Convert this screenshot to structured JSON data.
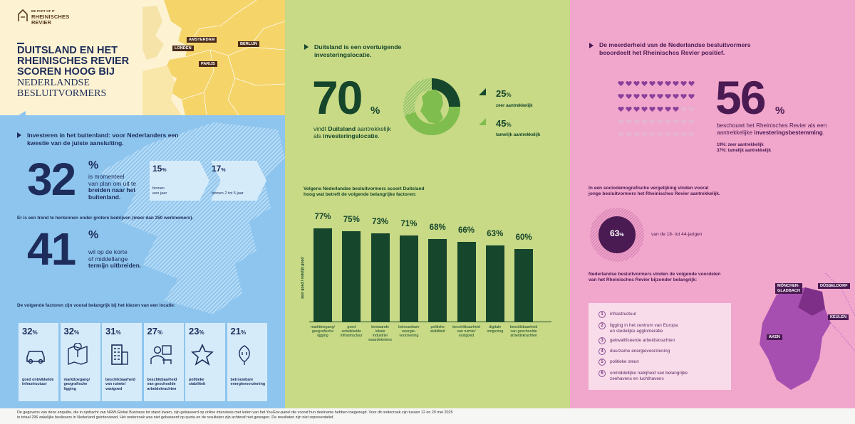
{
  "brand": {
    "tagline": "BE PART OF IT",
    "name_line1": "RHEINISCHES",
    "name_line2": "REVIER"
  },
  "headline": {
    "line1": "DUITSLAND EN HET",
    "line2": "RHEINISCHES REVIER",
    "line3": "SCOREN HOOG BIJ",
    "line4": "NEDERLANDSE",
    "line5": "BESLUITVORMERS"
  },
  "map_cities": [
    "AMSTERDAM",
    "LONDEN",
    "BERLIJN",
    "PARIJS"
  ],
  "blue": {
    "heading_line1": "Investeren in het buitenland: voor Nederlanders een",
    "heading_line2": "kwestie van de juiste aansluiting.",
    "big1": "32",
    "big1_unit": "%",
    "big1_l1": "is momenteel",
    "big1_l2": "van plan om uit te",
    "big1_l3": "breiden naar het",
    "big1_l4": "buitenland.",
    "arrow1_pct": "15",
    "arrow1_unit": "%",
    "arrow1_l1": "binnen",
    "arrow1_l2": "een jaar",
    "arrow2_pct": "17",
    "arrow2_unit": "%",
    "arrow2_l1": "binnen 2 tot 5 jaar",
    "trend": "Er is een trend te herkennen onder grotere bedrijven (meer dan 250 werknemers).",
    "big2": "41",
    "big2_unit": "%",
    "big2_l1": "wil op de korte",
    "big2_l2": "of middellange",
    "big2_l3": "termijn uitbreiden.",
    "factors_heading": "De volgende factoren zijn vooral belangrijk bij het kiezen van een locatie:",
    "factors": [
      {
        "pct": "32",
        "unit": "%",
        "icon": "car-icon",
        "l1": "goed ontwikkelde",
        "l2": "infrastructuur",
        "l3": ""
      },
      {
        "pct": "32",
        "unit": "%",
        "icon": "map-pin-icon",
        "l1": "markttoegang/",
        "l2": "geografische",
        "l3": "ligging"
      },
      {
        "pct": "31",
        "unit": "%",
        "icon": "building-icon",
        "l1": "beschikbaarheid",
        "l2": "van ruimte/",
        "l3": "vastgoed"
      },
      {
        "pct": "27",
        "unit": "%",
        "icon": "workers-icon",
        "l1": "beschikbaarheid",
        "l2": "van geschoolde",
        "l3": "arbeidskrachten"
      },
      {
        "pct": "23",
        "unit": "%",
        "icon": "star-icon",
        "l1": "politieke",
        "l2": "stabiliteit",
        "l3": ""
      },
      {
        "pct": "21",
        "unit": "%",
        "icon": "plug-leaf-icon",
        "l1": "betrouwbare",
        "l2": "energievoorziening",
        "l3": ""
      }
    ]
  },
  "green": {
    "heading_line1": "Duitsland is een overtuigende",
    "heading_line2": "investeringslocatie.",
    "big": "70",
    "big_unit": "%",
    "big_l1_a": "vindt ",
    "big_l1_b": "Duitsland",
    "big_l1_c": " aantrekkelijk",
    "big_l2_a": "als ",
    "big_l2_b": "investeringslocatie",
    "big_l2_c": ".",
    "share1_pct": "25",
    "share1_unit": "%",
    "share1_lbl": "zeer aantrekkelijk",
    "share2_pct": "45",
    "share2_unit": "%",
    "share2_lbl": "tamelijk aantrekkelijk",
    "chart_heading_l1": "Volgens Nederlandse besluitvormers scoort Duitsland",
    "chart_heading_l2": "hoog wat betreft de volgende belangrijke factoren:",
    "y_label": "zeer goed / redelijk goed"
  },
  "chart_data": {
    "type": "bar",
    "ylabel": "zeer goed / redelijk goed",
    "unit": "%",
    "categories": [
      [
        "markttoegang/",
        "geografische",
        "ligging"
      ],
      [
        "goed",
        "ontwikkelde",
        "infrastructuur"
      ],
      [
        "bestaande lokale",
        "industrie/",
        "waardeketens"
      ],
      [
        "betrouwbare",
        "energie-",
        "voorziening"
      ],
      [
        "politieke",
        "stabiliteit",
        ""
      ],
      [
        "beschikbaarheid",
        "van ruimte/",
        "vastgoed"
      ],
      [
        "digitale",
        "omgeving",
        ""
      ],
      [
        "beschikbaarheid",
        "van geschoolde",
        "arbeidskrachten"
      ]
    ],
    "values": [
      77,
      75,
      73,
      71,
      68,
      66,
      63,
      60
    ],
    "ylim": [
      0,
      100
    ],
    "grid": false
  },
  "pink": {
    "heading_line1": "De meerderheid van de Nederlandse besluitvormers",
    "heading_line2": "beoordeelt het Rheinisches Revier positief.",
    "big": "56",
    "big_unit": "%",
    "big_l1": "beschouwt het Rheinisches Revier als een",
    "big_l2_a": "aantrekkelijke ",
    "big_l2_b": "investeringsbestemming",
    "big_l2_c": ".",
    "sub1": "19%: zeer aantrekkelijk",
    "sub2": "37%: tamelijk aantrekkelijk",
    "hearts_total": 50,
    "hearts_filled_fraction": 0.56,
    "demo_l1": "In een sociodemografische vergelijking vinden vooral",
    "demo_l2": "jonge besluitvormers het Rheinisches Revier aantrekkelijk.",
    "circle_pct": "63",
    "circle_unit": "%",
    "circle_lbl": "van de 18- tot 44-jarigen",
    "adv_heading_l1": "Nederlandse besluitvormers vinden de volgende voordelen",
    "adv_heading_l2": "van het Rheinisches Revier bijzonder belangrijk:",
    "advantages": [
      {
        "n": "1",
        "l1": "infrastructuur",
        "l2": ""
      },
      {
        "n": "2",
        "l1": "ligging in het centrum van Europa",
        "l2": "en stedelijke agglomeratie"
      },
      {
        "n": "3",
        "l1": "gekwalificeerde arbeidskrachten",
        "l2": ""
      },
      {
        "n": "4",
        "l1": "duurzame energievoorziening",
        "l2": ""
      },
      {
        "n": "5",
        "l1": "politieke steun",
        "l2": ""
      },
      {
        "n": "6",
        "l1": "onmiddellijke nabijheid van belangrijke",
        "l2": "zeehavens en luchthavens"
      }
    ],
    "map_cities": [
      "MÖNCHEN-",
      "GLADBACH",
      "DÜSSELDORF",
      "KEULEN",
      "AKEN"
    ]
  },
  "footer": {
    "line1": "De gegevens van deze enquête, die in opdracht van NRW.Global Business tot stand kwam, zijn gebaseerd op online interviews met leden van het YouGov-panel die vooraf hun deelname hebben toegezegd. Voor dit onderzoek zijn tussen 12 en 20 mei 2025",
    "line2": "in totaal 296 zakelijke beslissers in Nederland geïnterviewd. Het onderzoek was niet gebaseerd op quota en de resultaten zijn achteraf niet gewogen. De resultaten zijn niet representatief."
  },
  "colors": {
    "navy": "#1d2c5a",
    "blue": "#8ec5ee",
    "green": "#c8da86",
    "darkgreen": "#16472c",
    "pink": "#f1a6cc",
    "plum": "#4a1a52",
    "cream": "#fdf3d3"
  }
}
